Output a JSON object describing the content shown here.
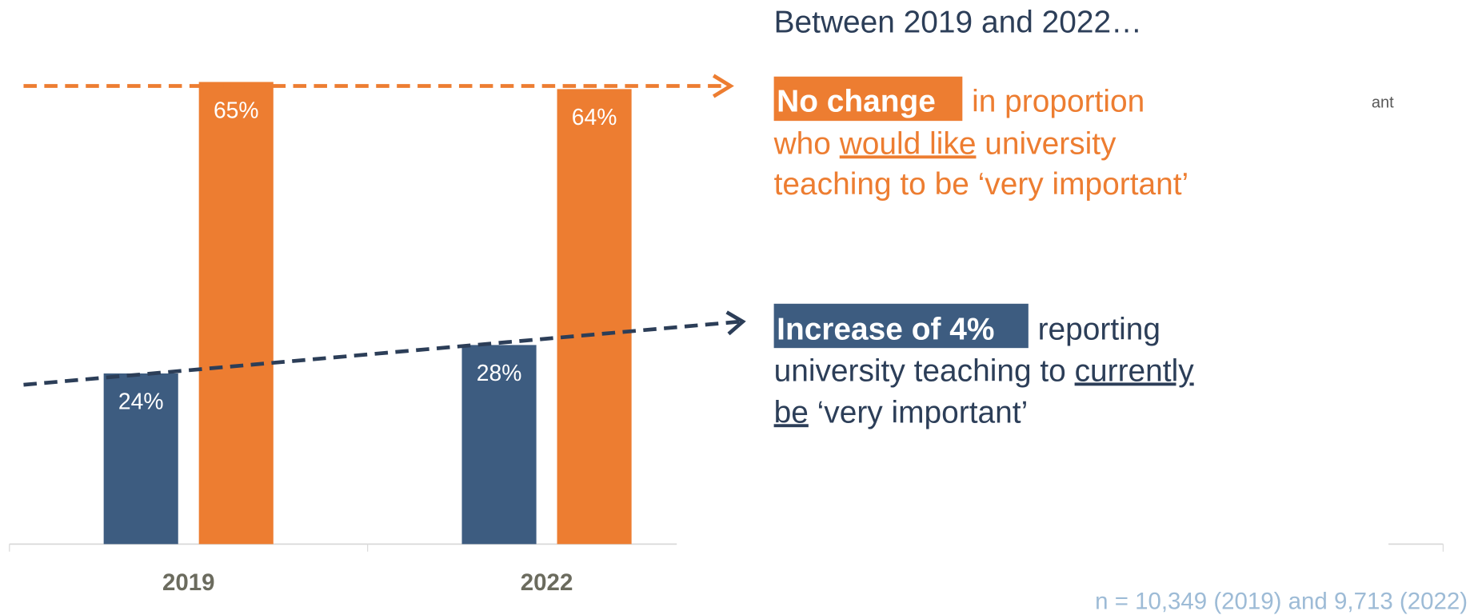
{
  "chart_data": {
    "type": "bar",
    "categories": [
      "2019",
      "2022"
    ],
    "series": [
      {
        "color": "#3d5c80",
        "values": [
          24,
          28
        ],
        "value_labels": [
          "24%",
          "28%"
        ]
      },
      {
        "color": "#ed7d31",
        "values": [
          65,
          64
        ],
        "value_labels": [
          "65%",
          "64%"
        ]
      }
    ],
    "ylim": [
      0,
      70
    ],
    "heading": "Between 2019 and 2022…",
    "annotations": [
      {
        "highlight": "No change",
        "lines": [
          [
            "in proportion"
          ],
          [
            "who",
            "would like",
            "university"
          ],
          [
            "teaching to be ‘very important’"
          ]
        ]
      },
      {
        "highlight": "Increase of 4%",
        "lines": [
          [
            "reporting"
          ],
          [
            "university teaching to",
            "currently"
          ],
          [
            "be",
            "‘very important’"
          ]
        ]
      }
    ],
    "fragment": "ant",
    "footnote": "n = 10,349 (2019) and 9,713 (2022)"
  }
}
